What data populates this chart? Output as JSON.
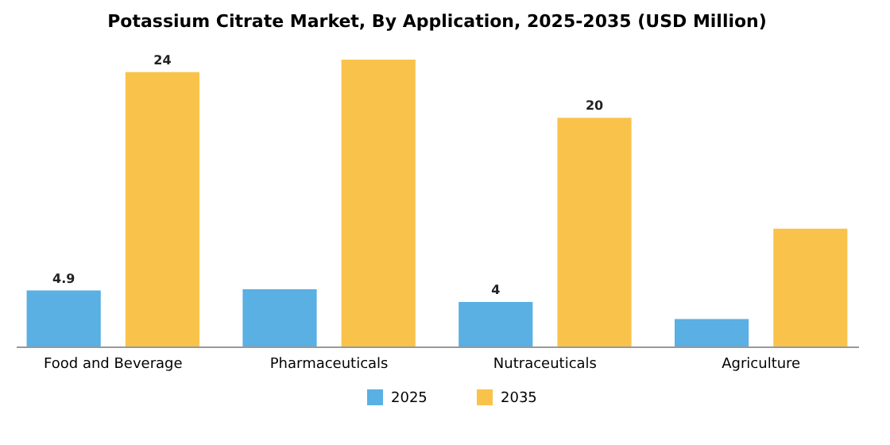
{
  "chart_data": {
    "type": "bar",
    "title": "Potassium Citrate Market, By Application, 2025-2035 (USD Million)",
    "categories": [
      "Food and Beverage",
      "Pharmaceuticals",
      "Nutraceuticals",
      "Agriculture"
    ],
    "series": [
      {
        "name": "2025",
        "color": "#5aafe3",
        "values": [
          4.9,
          5.0,
          3.9,
          2.4
        ],
        "value_labels": [
          "4.9",
          null,
          "4",
          null
        ]
      },
      {
        "name": "2035",
        "color": "#f9c34b",
        "values": [
          24,
          25.1,
          20,
          10.3
        ],
        "value_labels": [
          "24",
          null,
          "20",
          null
        ]
      }
    ],
    "legend": "bottom"
  }
}
